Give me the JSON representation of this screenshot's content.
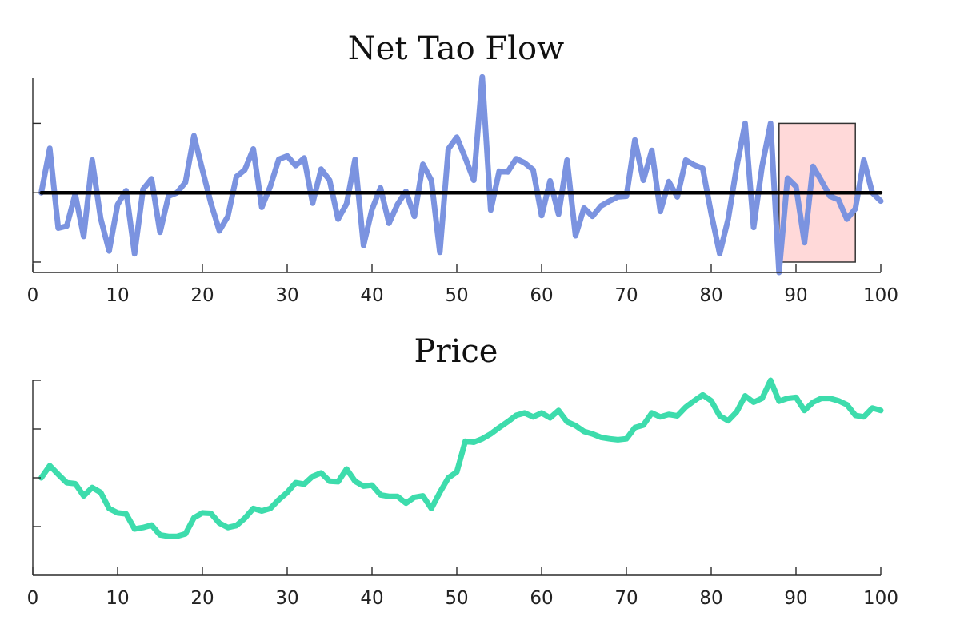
{
  "chart_data": [
    {
      "type": "line",
      "title": "Net Tao Flow",
      "xlabel": "",
      "ylabel": "",
      "xlim": [
        0,
        100
      ],
      "ylim": [
        -1.15,
        1.65
      ],
      "xticks": [
        0,
        10,
        20,
        30,
        40,
        50,
        60,
        70,
        80,
        90,
        100
      ],
      "yticks": [
        -1,
        0,
        1
      ],
      "y_tick_labels_shown": false,
      "grid": false,
      "legend": "none",
      "series": [
        {
          "color": "#7b93e0",
          "x": [
            1,
            2,
            3,
            4,
            5,
            6,
            7,
            8,
            9,
            10,
            11,
            12,
            13,
            14,
            15,
            16,
            17,
            18,
            19,
            20,
            21,
            22,
            23,
            24,
            25,
            26,
            27,
            28,
            29,
            30,
            31,
            32,
            33,
            34,
            35,
            36,
            37,
            38,
            39,
            40,
            41,
            42,
            43,
            44,
            45,
            46,
            47,
            48,
            49,
            50,
            51,
            52,
            53,
            54,
            55,
            56,
            57,
            58,
            59,
            60,
            61,
            62,
            63,
            64,
            65,
            66,
            67,
            68,
            69,
            70,
            71,
            72,
            73,
            74,
            75,
            76,
            77,
            78,
            79,
            80,
            81,
            82,
            83,
            84,
            85,
            86,
            87,
            88,
            89,
            90,
            91,
            92,
            93,
            94,
            95,
            96,
            97,
            98,
            99,
            100
          ],
          "y": [
            0.0,
            0.64,
            -0.51,
            -0.48,
            -0.02,
            -0.63,
            0.47,
            -0.37,
            -0.84,
            -0.17,
            0.03,
            -0.88,
            0.05,
            0.2,
            -0.57,
            -0.05,
            0.0,
            0.15,
            0.82,
            0.33,
            -0.15,
            -0.55,
            -0.34,
            0.23,
            0.33,
            0.63,
            -0.21,
            0.09,
            0.48,
            0.53,
            0.39,
            0.5,
            -0.15,
            0.34,
            0.18,
            -0.38,
            -0.16,
            0.48,
            -0.76,
            -0.24,
            0.07,
            -0.44,
            -0.17,
            0.02,
            -0.34,
            0.41,
            0.18,
            -0.86,
            0.63,
            0.8,
            0.5,
            0.18,
            1.67,
            -0.25,
            0.31,
            0.3,
            0.49,
            0.43,
            0.33,
            -0.33,
            0.17,
            -0.31,
            0.47,
            -0.62,
            -0.22,
            -0.34,
            -0.19,
            -0.12,
            -0.06,
            -0.05,
            0.76,
            0.18,
            0.61,
            -0.27,
            0.16,
            -0.06,
            0.47,
            0.4,
            0.35,
            -0.3,
            -0.88,
            -0.38,
            0.37,
            1.0,
            -0.5,
            0.38,
            1.0,
            -1.15,
            0.21,
            0.09,
            -0.72,
            0.38,
            0.17,
            -0.05,
            -0.1,
            -0.38,
            -0.23,
            0.47,
            0.0,
            -0.12
          ]
        },
        {
          "color": "#000000",
          "x": [
            1,
            100
          ],
          "y": [
            0.0,
            0.0
          ]
        }
      ],
      "annotations": [
        {
          "type": "highlight-box",
          "x_range": [
            88,
            97
          ],
          "y_range": [
            -1.0,
            1.0
          ],
          "fill": "#ffd9d9",
          "edge": "#333333"
        }
      ]
    },
    {
      "type": "line",
      "title": "Price",
      "xlabel": "",
      "ylabel": "",
      "xlim": [
        0,
        100
      ],
      "ylim": [
        -2,
        2
      ],
      "xticks": [
        0,
        10,
        20,
        30,
        40,
        50,
        60,
        70,
        80,
        90,
        100
      ],
      "yticks": [
        -1,
        0,
        1,
        2
      ],
      "y_tick_labels_shown": false,
      "grid": false,
      "legend": "none",
      "series": [
        {
          "color": "#3ddcac",
          "x": [
            1,
            2,
            3,
            4,
            5,
            6,
            7,
            8,
            9,
            10,
            11,
            12,
            13,
            14,
            15,
            16,
            17,
            18,
            19,
            20,
            21,
            22,
            23,
            24,
            25,
            26,
            27,
            28,
            29,
            30,
            31,
            32,
            33,
            34,
            35,
            36,
            37,
            38,
            39,
            40,
            41,
            42,
            43,
            44,
            45,
            46,
            47,
            48,
            49,
            50,
            51,
            52,
            53,
            54,
            55,
            56,
            57,
            58,
            59,
            60,
            61,
            62,
            63,
            64,
            65,
            66,
            67,
            68,
            69,
            70,
            71,
            72,
            73,
            74,
            75,
            76,
            77,
            78,
            79,
            80,
            81,
            82,
            83,
            84,
            85,
            86,
            87,
            88,
            89,
            90,
            91,
            92,
            93,
            94,
            95,
            96,
            97,
            98,
            99,
            100
          ],
          "y": [
            0.0,
            0.25,
            0.07,
            -0.1,
            -0.12,
            -0.37,
            -0.2,
            -0.3,
            -0.63,
            -0.72,
            -0.74,
            -1.05,
            -1.02,
            -0.97,
            -1.17,
            -1.2,
            -1.2,
            -1.15,
            -0.82,
            -0.72,
            -0.73,
            -0.93,
            -1.02,
            -0.98,
            -0.83,
            -0.63,
            -0.68,
            -0.63,
            -0.45,
            -0.3,
            -0.1,
            -0.13,
            0.03,
            0.1,
            -0.07,
            -0.08,
            0.18,
            -0.07,
            -0.17,
            -0.15,
            -0.35,
            -0.38,
            -0.38,
            -0.52,
            -0.4,
            -0.37,
            -0.63,
            -0.3,
            0.0,
            0.12,
            0.75,
            0.73,
            0.8,
            0.9,
            1.03,
            1.15,
            1.28,
            1.33,
            1.25,
            1.33,
            1.23,
            1.38,
            1.15,
            1.07,
            0.95,
            0.9,
            0.83,
            0.8,
            0.78,
            0.8,
            1.03,
            1.08,
            1.33,
            1.25,
            1.3,
            1.27,
            1.45,
            1.58,
            1.7,
            1.58,
            1.27,
            1.17,
            1.35,
            1.68,
            1.55,
            1.63,
            2.0,
            1.57,
            1.63,
            1.65,
            1.38,
            1.55,
            1.63,
            1.63,
            1.58,
            1.5,
            1.28,
            1.25,
            1.43,
            1.38
          ]
        }
      ]
    }
  ]
}
